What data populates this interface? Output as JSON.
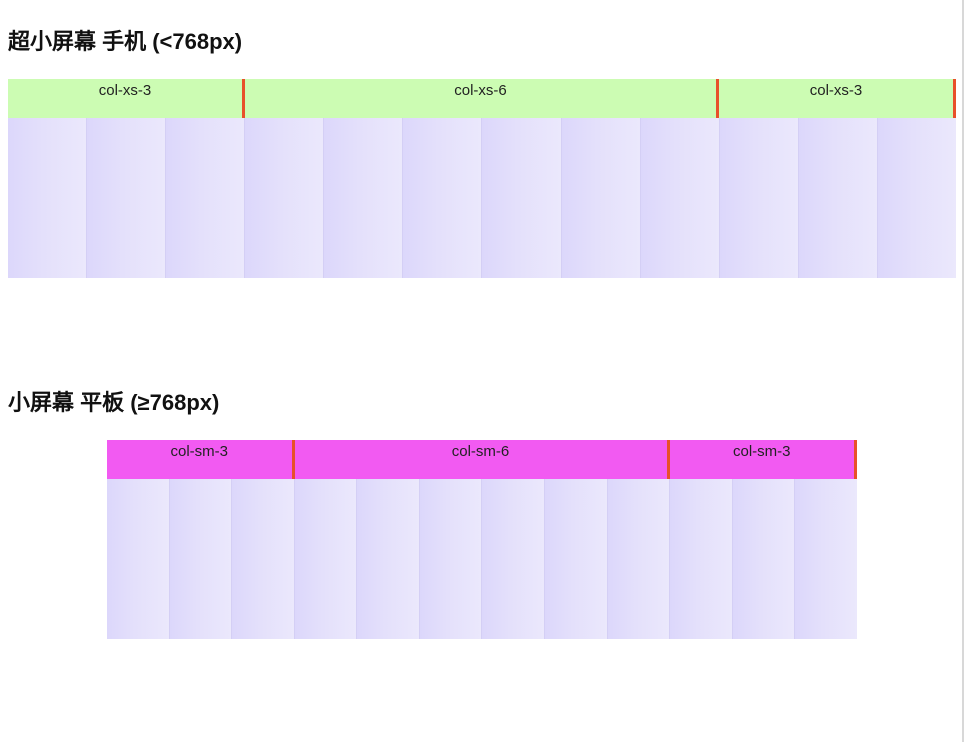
{
  "sections": [
    {
      "heading": "超小屏幕 手机 (<768px)",
      "columns": [
        {
          "label": "col-xs-3",
          "span": 3
        },
        {
          "label": "col-xs-6",
          "span": 6
        },
        {
          "label": "col-xs-3",
          "span": 3
        }
      ],
      "label_color": "#ccfcb3",
      "grid_columns": 12
    },
    {
      "heading": "小屏幕 平板 (≥768px)",
      "columns": [
        {
          "label": "col-sm-3",
          "span": 3
        },
        {
          "label": "col-sm-6",
          "span": 6
        },
        {
          "label": "col-sm-3",
          "span": 3
        }
      ],
      "label_color": "#f25af2",
      "grid_columns": 12
    }
  ],
  "colors": {
    "divider": "#e8502a",
    "stripe": "#e4e0fb"
  }
}
